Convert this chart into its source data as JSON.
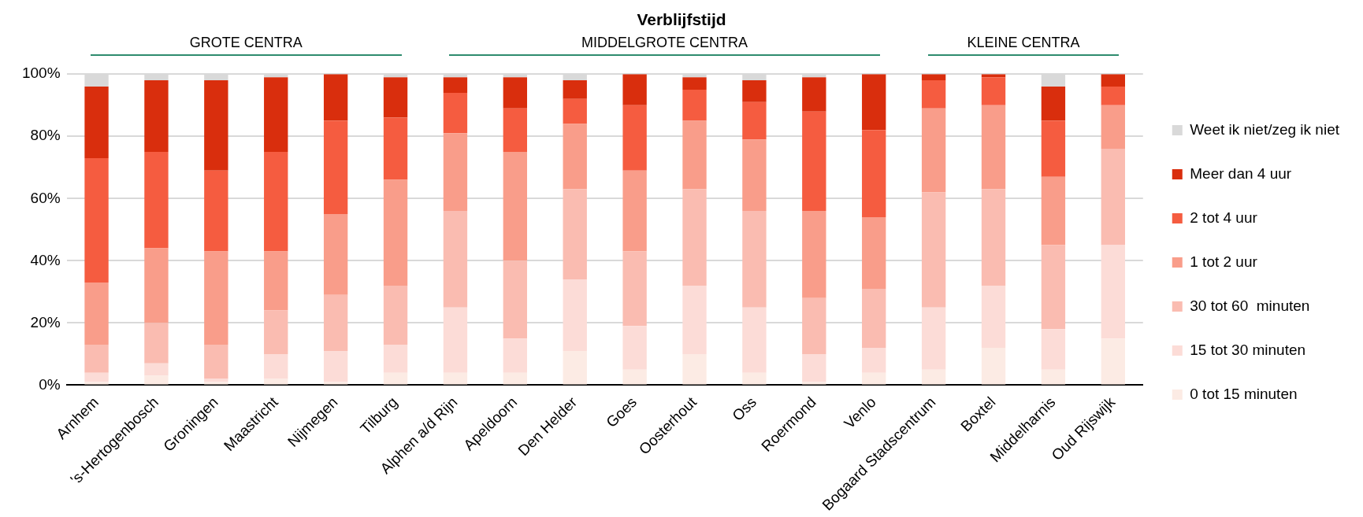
{
  "chart_data": {
    "type": "bar",
    "title": "Verblijfstijd",
    "stacked": true,
    "categories": [
      "Arnhem",
      "'s-Hertogenbosch",
      "Groningen",
      "Maastricht",
      "Nijmegen",
      "Tilburg",
      "Alphen a/d Rijn",
      "Apeldoorn",
      "Den Helder",
      "Goes",
      "Oosterhout",
      "Oss",
      "Roermond",
      "Venlo",
      "Bogaard Stadscentrum",
      "Boxtel",
      "Middelharnis",
      "Oud Rijswijk"
    ],
    "series": [
      {
        "name": "0 tot 15 minuten",
        "color": "#fcebe4",
        "values": [
          1,
          3,
          1,
          2,
          1,
          4,
          4,
          4,
          11,
          5,
          10,
          4,
          1,
          4,
          5,
          12,
          5,
          15
        ]
      },
      {
        "name": "15 tot 30 minuten",
        "color": "#fcdcd7",
        "values": [
          3,
          4,
          1,
          8,
          10,
          9,
          21,
          11,
          23,
          14,
          22,
          21,
          9,
          8,
          20,
          20,
          13,
          30
        ]
      },
      {
        "name": "30 tot 60  minuten",
        "color": "#fabcb1",
        "values": [
          9,
          13,
          11,
          14,
          18,
          19,
          31,
          25,
          29,
          24,
          31,
          31,
          18,
          19,
          37,
          31,
          27,
          31
        ]
      },
      {
        "name": "1 tot 2 uur",
        "color": "#f99d8a",
        "values": [
          20,
          24,
          30,
          19,
          26,
          34,
          25,
          35,
          21,
          26,
          22,
          23,
          28,
          23,
          27,
          27,
          22,
          14
        ]
      },
      {
        "name": "2 tot 4 uur",
        "color": "#f55c40",
        "values": [
          40,
          31,
          26,
          32,
          30,
          20,
          13,
          14,
          8,
          21,
          10,
          12,
          32,
          28,
          9,
          9,
          18,
          6
        ]
      },
      {
        "name": "Meer dan 4 uur",
        "color": "#d92e0d",
        "values": [
          23,
          23,
          29,
          24,
          15,
          13,
          5,
          10,
          6,
          10,
          4,
          7,
          11,
          18,
          2,
          1,
          11,
          4
        ]
      },
      {
        "name": "Weet ik niet/zeg ik niet",
        "color": "#d9d9d9",
        "values": [
          4,
          2,
          2,
          1,
          0,
          1,
          1,
          1,
          2,
          0,
          1,
          2,
          1,
          0,
          0,
          0,
          4,
          0
        ]
      }
    ],
    "ylim": [
      0,
      100
    ],
    "yticks": [
      {
        "value": 0,
        "label": "0%"
      },
      {
        "value": 20,
        "label": "20%"
      },
      {
        "value": 40,
        "label": "40%"
      },
      {
        "value": 60,
        "label": "60%"
      },
      {
        "value": 80,
        "label": "80%"
      },
      {
        "value": 100,
        "label": "100%"
      }
    ],
    "grid": "y",
    "legend": "right",
    "annotations": [
      "GROTE CENTRA",
      "MIDDELGROTE CENTRA",
      "KLEINE CENTRA"
    ]
  }
}
